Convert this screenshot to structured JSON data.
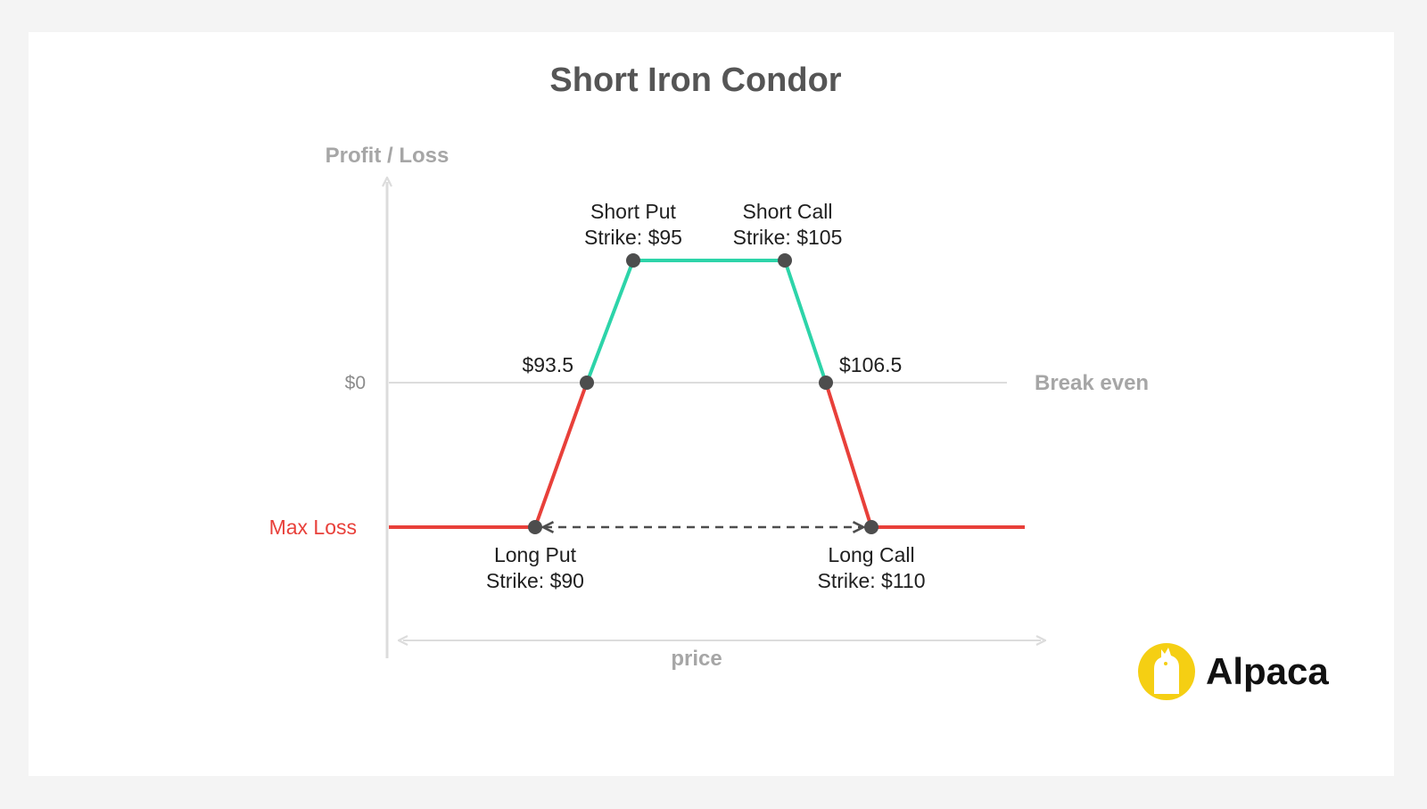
{
  "diagram": {
    "title": "Short Iron Condor",
    "y_axis_label": "Profit / Loss",
    "x_axis_label": "price",
    "zero_label": "$0",
    "break_even_label": "Break even",
    "max_loss_label": "Max Loss",
    "labels": {
      "short_put_name": "Short Put",
      "short_put_strike": "Strike: $95",
      "short_call_name": "Short Call",
      "short_call_strike": "Strike: $105",
      "long_put_name": "Long Put",
      "long_put_strike": "Strike: $90",
      "long_call_name": "Long Call",
      "long_call_strike": "Strike: $110",
      "lower_break_even": "$93.5",
      "upper_break_even": "$106.5"
    },
    "colors": {
      "profit": "#2dd4a9",
      "loss": "#e8403a",
      "axis": "#dcdcdc",
      "point": "#4d4d4d",
      "logo": "#f5cf13"
    }
  },
  "brand": {
    "name": "Alpaca",
    "logo_icon": "alpaca-icon"
  }
}
